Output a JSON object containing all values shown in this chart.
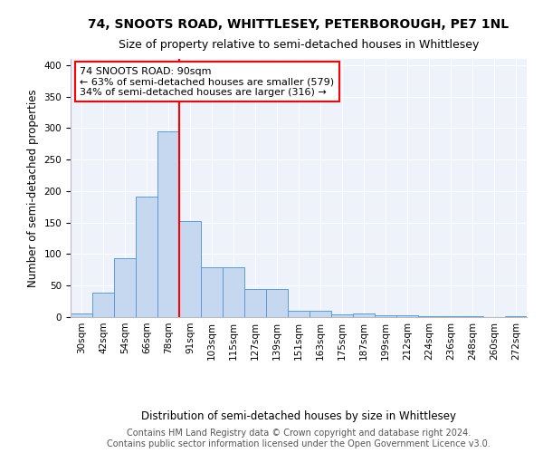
{
  "title": "74, SNOOTS ROAD, WHITTLESEY, PETERBOROUGH, PE7 1NL",
  "subtitle": "Size of property relative to semi-detached houses in Whittlesey",
  "xlabel": "Distribution of semi-detached houses by size in Whittlesey",
  "ylabel": "Number of semi-detached properties",
  "categories": [
    "30sqm",
    "42sqm",
    "54sqm",
    "66sqm",
    "78sqm",
    "91sqm",
    "103sqm",
    "115sqm",
    "127sqm",
    "139sqm",
    "151sqm",
    "163sqm",
    "175sqm",
    "187sqm",
    "199sqm",
    "212sqm",
    "224sqm",
    "236sqm",
    "248sqm",
    "260sqm",
    "272sqm"
  ],
  "values": [
    6,
    39,
    93,
    191,
    295,
    152,
    79,
    79,
    44,
    44,
    10,
    10,
    5,
    6,
    3,
    3,
    2,
    2,
    1,
    0,
    2
  ],
  "bar_color": "#c5d8f0",
  "bar_edge_color": "#5b9bd5",
  "vline_color": "red",
  "vline_x": 4,
  "annotation_text": "74 SNOOTS ROAD: 90sqm\n← 63% of semi-detached houses are smaller (579)\n34% of semi-detached houses are larger (316) →",
  "annotation_box_color": "white",
  "annotation_box_edge_color": "red",
  "ylim": [
    0,
    410
  ],
  "yticks": [
    0,
    50,
    100,
    150,
    200,
    250,
    300,
    350,
    400
  ],
  "background_color": "#eef2fb",
  "footer_text": "Contains HM Land Registry data © Crown copyright and database right 2024.\nContains public sector information licensed under the Open Government Licence v3.0.",
  "title_fontsize": 10,
  "subtitle_fontsize": 9,
  "axis_label_fontsize": 8.5,
  "tick_fontsize": 7.5,
  "annotation_fontsize": 8,
  "footer_fontsize": 7
}
